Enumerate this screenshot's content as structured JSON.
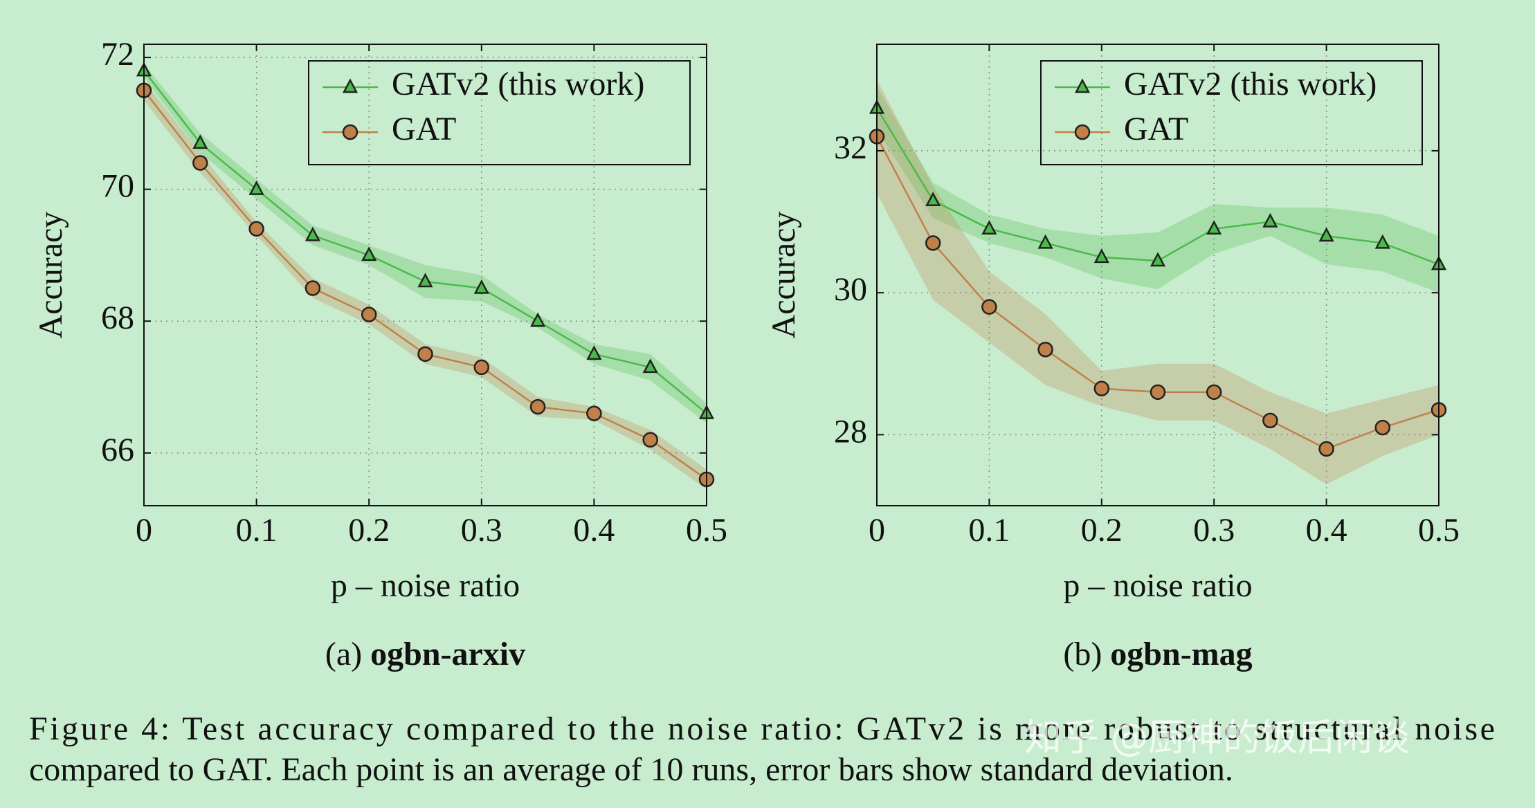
{
  "chart_data": [
    {
      "type": "line",
      "ylabel": "Accuracy",
      "xlabel": "p – noise ratio",
      "subcaption": {
        "label": "(a)",
        "name": "ogbn-arxiv"
      },
      "x": [
        0,
        0.05,
        0.1,
        0.15,
        0.2,
        0.25,
        0.3,
        0.35,
        0.4,
        0.45,
        0.5
      ],
      "series": [
        {
          "name": "GATv2 (this work)",
          "color": "#4cb94c",
          "marker": "triangle",
          "values": [
            71.8,
            70.7,
            70.0,
            69.3,
            69.0,
            68.6,
            68.5,
            68.0,
            67.5,
            67.3,
            66.6
          ],
          "std": [
            0.1,
            0.15,
            0.15,
            0.15,
            0.15,
            0.25,
            0.2,
            0.1,
            0.15,
            0.2,
            0.15
          ]
        },
        {
          "name": "GAT",
          "color": "#c0804a",
          "marker": "circle",
          "values": [
            71.5,
            70.4,
            69.4,
            68.5,
            68.1,
            67.5,
            67.3,
            66.7,
            66.6,
            66.2,
            65.6
          ],
          "std": [
            0.15,
            0.15,
            0.1,
            0.15,
            0.15,
            0.15,
            0.15,
            0.15,
            0.1,
            0.15,
            0.15
          ]
        }
      ],
      "xlim": [
        0,
        0.5
      ],
      "ylim": [
        65.2,
        72.2
      ],
      "xticks": [
        0,
        0.1,
        0.2,
        0.3,
        0.4,
        0.5
      ],
      "yticks": [
        66,
        68,
        70,
        72
      ],
      "grid": true,
      "legend": "upper right"
    },
    {
      "type": "line",
      "ylabel": "Accuracy",
      "xlabel": "p – noise ratio",
      "subcaption": {
        "label": "(b)",
        "name": "ogbn-mag"
      },
      "x": [
        0,
        0.05,
        0.1,
        0.15,
        0.2,
        0.25,
        0.3,
        0.35,
        0.4,
        0.45,
        0.5
      ],
      "series": [
        {
          "name": "GATv2 (this work)",
          "color": "#4cb94c",
          "marker": "triangle",
          "values": [
            32.6,
            31.3,
            30.9,
            30.7,
            30.5,
            30.45,
            30.9,
            31.0,
            30.8,
            30.7,
            30.4
          ],
          "std": [
            0.3,
            0.25,
            0.2,
            0.2,
            0.3,
            0.4,
            0.35,
            0.2,
            0.4,
            0.4,
            0.4
          ]
        },
        {
          "name": "GAT",
          "color": "#c0804a",
          "marker": "circle",
          "values": [
            32.2,
            30.7,
            29.8,
            29.2,
            28.65,
            28.6,
            28.6,
            28.2,
            27.8,
            28.1,
            28.35
          ],
          "std": [
            0.8,
            0.8,
            0.5,
            0.5,
            0.25,
            0.4,
            0.4,
            0.4,
            0.5,
            0.4,
            0.35
          ]
        }
      ],
      "xlim": [
        0,
        0.5
      ],
      "ylim": [
        27,
        33.5
      ],
      "xticks": [
        0,
        0.1,
        0.2,
        0.3,
        0.4,
        0.5
      ],
      "yticks": [
        28,
        30,
        32
      ],
      "grid": true,
      "legend": "upper right"
    }
  ],
  "caption": [
    "Figure 4: Test accuracy compared to the noise ratio: GATv2 is more robust to structural noise",
    "compared to GAT. Each point is an average of 10 runs, error bars show standard deviation."
  ],
  "watermark": "知乎 @厨神的饭后闲谈"
}
